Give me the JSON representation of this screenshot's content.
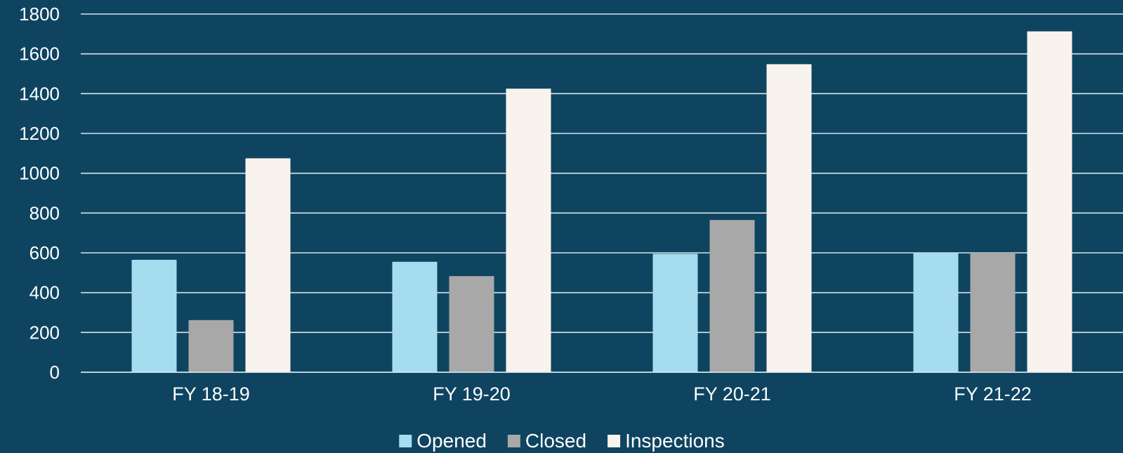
{
  "chart_data": {
    "type": "bar",
    "title": "",
    "xlabel": "",
    "ylabel": "",
    "categories": [
      "FY 18-19",
      "FY 19-20",
      "FY 20-21",
      "FY 21-22"
    ],
    "series": [
      {
        "name": "Opened",
        "values": [
          565,
          555,
          595,
          600
        ],
        "color": "#a6dcf0"
      },
      {
        "name": "Closed",
        "values": [
          262,
          483,
          765,
          600
        ],
        "color": "#a8a8a8"
      },
      {
        "name": "Inspections",
        "values": [
          1075,
          1425,
          1548,
          1713
        ],
        "color": "#f8f3ed"
      }
    ],
    "ylim": [
      0,
      1800
    ],
    "yticks": [
      0,
      200,
      400,
      600,
      800,
      1000,
      1200,
      1400,
      1600,
      1800
    ],
    "grid": true,
    "legend": "bottom",
    "background": "#0e4460",
    "gridline_color": "#d9e4ea"
  }
}
